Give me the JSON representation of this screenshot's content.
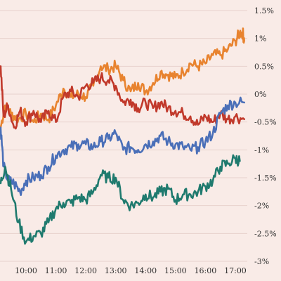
{
  "chart_data": {
    "type": "line",
    "title": "",
    "xlabel": "",
    "ylabel": "",
    "xlim": [
      9.13,
      17.4
    ],
    "ylim": [
      -3,
      1.5
    ],
    "x_ticks": [
      {
        "value": 10,
        "label": "10:00"
      },
      {
        "value": 11,
        "label": "11:00"
      },
      {
        "value": 12,
        "label": "12:00"
      },
      {
        "value": 13,
        "label": "13:00"
      },
      {
        "value": 14,
        "label": "14:00"
      },
      {
        "value": 15,
        "label": "15:00"
      },
      {
        "value": 16,
        "label": "16:00"
      },
      {
        "value": 17,
        "label": "17:00"
      }
    ],
    "y_ticks": [
      {
        "value": 1.5,
        "label": "1.5%"
      },
      {
        "value": 1,
        "label": "1%"
      },
      {
        "value": 0.5,
        "label": "0.5%"
      },
      {
        "value": 0,
        "label": "0%"
      },
      {
        "value": -0.5,
        "label": "-0.5%"
      },
      {
        "value": -1,
        "label": "-1%"
      },
      {
        "value": -1.5,
        "label": "-1.5%"
      },
      {
        "value": -2,
        "label": "-2%"
      },
      {
        "value": -2.5,
        "label": "-2.5%"
      },
      {
        "value": -3,
        "label": "-3%"
      }
    ],
    "grid": {
      "horizontal": true,
      "vertical": false
    },
    "legend": "none",
    "y_axis_position": "right",
    "series": [
      {
        "color": "#e8832f",
        "x": [
          9.15,
          9.3,
          9.5,
          9.75,
          10.0,
          10.25,
          10.5,
          10.75,
          11.0,
          11.25,
          11.5,
          11.75,
          12.0,
          12.25,
          12.5,
          12.75,
          13.0,
          13.25,
          13.5,
          13.75,
          14.0,
          14.25,
          14.5,
          14.75,
          15.0,
          15.25,
          15.5,
          15.75,
          16.0,
          16.25,
          16.5,
          16.75,
          17.0,
          17.15,
          17.25,
          17.3
        ],
        "y": [
          -0.6,
          -0.2,
          -0.35,
          -0.45,
          -0.35,
          -0.5,
          -0.35,
          -0.45,
          -0.2,
          0.1,
          -0.05,
          0.0,
          -0.05,
          0.15,
          0.5,
          0.45,
          0.5,
          0.25,
          0.05,
          0.2,
          0.05,
          0.2,
          0.4,
          0.35,
          0.3,
          0.4,
          0.55,
          0.5,
          0.55,
          0.7,
          0.7,
          0.8,
          0.95,
          1.1,
          1.1,
          0.95
        ]
      },
      {
        "color": "#c1392b",
        "x": [
          9.15,
          9.25,
          9.4,
          9.6,
          9.8,
          10.0,
          10.25,
          10.5,
          10.75,
          11.0,
          11.25,
          11.5,
          11.75,
          12.0,
          12.25,
          12.5,
          12.75,
          13.0,
          13.25,
          13.5,
          13.75,
          14.0,
          14.25,
          14.5,
          14.75,
          15.0,
          15.25,
          15.5,
          15.75,
          16.0,
          16.25,
          16.5,
          16.75,
          17.0,
          17.3
        ],
        "y": [
          0.5,
          -0.4,
          -0.2,
          -0.6,
          -0.3,
          -0.5,
          -0.3,
          -0.5,
          -0.3,
          -0.5,
          -0.05,
          0.05,
          -0.05,
          0.15,
          0.2,
          0.3,
          0.25,
          0.15,
          -0.15,
          -0.1,
          -0.25,
          -0.15,
          -0.25,
          -0.15,
          -0.25,
          -0.3,
          -0.35,
          -0.4,
          -0.55,
          -0.4,
          -0.5,
          -0.35,
          -0.45,
          -0.4,
          -0.45
        ]
      },
      {
        "color": "#4a6fb8",
        "x": [
          9.15,
          9.25,
          9.4,
          9.6,
          9.8,
          10.0,
          10.25,
          10.5,
          10.75,
          11.0,
          11.25,
          11.5,
          11.75,
          12.0,
          12.25,
          12.5,
          12.75,
          13.0,
          13.25,
          13.5,
          13.75,
          14.0,
          14.25,
          14.5,
          14.75,
          15.0,
          15.25,
          15.5,
          15.75,
          16.0,
          16.25,
          16.5,
          16.75,
          17.0,
          17.3
        ],
        "y": [
          -0.6,
          -1.3,
          -1.55,
          -1.6,
          -1.75,
          -1.55,
          -1.5,
          -1.45,
          -1.3,
          -1.1,
          -1.0,
          -0.95,
          -0.9,
          -0.9,
          -0.95,
          -0.85,
          -0.8,
          -0.7,
          -1.0,
          -0.95,
          -1.0,
          -0.9,
          -0.85,
          -0.75,
          -0.85,
          -0.9,
          -0.95,
          -1.0,
          -0.95,
          -0.85,
          -0.7,
          -0.35,
          -0.2,
          -0.15,
          -0.15
        ]
      },
      {
        "color": "#1f7a6e",
        "x": [
          9.15,
          9.3,
          9.5,
          9.75,
          10.0,
          10.25,
          10.5,
          10.75,
          11.0,
          11.25,
          11.5,
          11.75,
          12.0,
          12.25,
          12.5,
          12.75,
          13.0,
          13.25,
          13.5,
          13.75,
          14.0,
          14.25,
          14.5,
          14.75,
          15.0,
          15.25,
          15.5,
          15.75,
          16.0,
          16.25,
          16.5,
          16.75,
          17.0,
          17.15
        ],
        "y": [
          -1.6,
          -1.3,
          -1.7,
          -2.3,
          -2.65,
          -2.55,
          -2.5,
          -2.3,
          -2.05,
          -1.95,
          -1.95,
          -1.85,
          -1.9,
          -1.75,
          -1.45,
          -1.5,
          -1.5,
          -1.9,
          -2.0,
          -1.95,
          -1.8,
          -1.85,
          -1.75,
          -1.7,
          -1.9,
          -1.8,
          -1.8,
          -1.75,
          -1.65,
          -1.55,
          -1.3,
          -1.25,
          -1.15,
          -1.2
        ]
      }
    ]
  }
}
